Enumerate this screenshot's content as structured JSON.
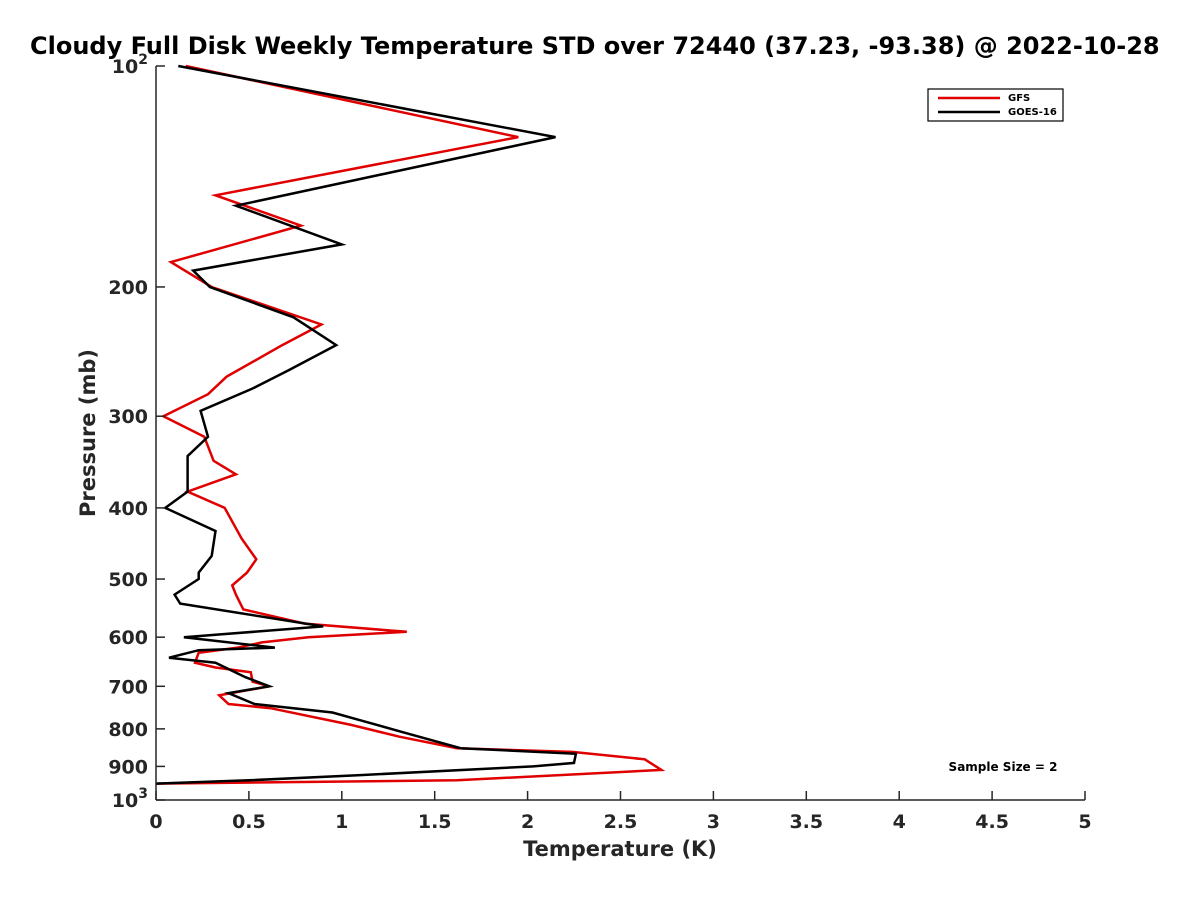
{
  "chart_data": {
    "type": "line",
    "title": "Cloudy Full Disk Weekly Temperature STD over 72440 (37.23, -93.38) @ 2022-10-28",
    "xlabel": "Temperature (K)",
    "ylabel": "Pressure (mb)",
    "xlim": [
      0,
      5
    ],
    "ylim": [
      100,
      1000
    ],
    "y_scale": "log",
    "y_reversed": true,
    "x_ticks": [
      "0",
      "0.5",
      "1",
      "1.5",
      "2",
      "2.5",
      "3",
      "3.5",
      "4",
      "4.5",
      "5"
    ],
    "y_ticks": [
      {
        "value": 100,
        "base": "10",
        "exp": "2",
        "label": ""
      },
      {
        "value": 200,
        "label": "200"
      },
      {
        "value": 300,
        "label": "300"
      },
      {
        "value": 400,
        "label": "400"
      },
      {
        "value": 500,
        "label": "500"
      },
      {
        "value": 600,
        "label": "600"
      },
      {
        "value": 700,
        "label": "700"
      },
      {
        "value": 800,
        "label": "800"
      },
      {
        "value": 900,
        "label": "900"
      },
      {
        "value": 1000,
        "base": "10",
        "exp": "3",
        "label": ""
      }
    ],
    "grid": false,
    "legend_position": "top-right",
    "annotation": "Sample Size = 2",
    "series": [
      {
        "name": "GFS",
        "color": "#e00000",
        "points": [
          [
            0.16,
            100
          ],
          [
            1.95,
            125
          ],
          [
            0.32,
            150
          ],
          [
            0.78,
            165
          ],
          [
            0.08,
            185
          ],
          [
            0.3,
            200
          ],
          [
            0.89,
            225
          ],
          [
            0.68,
            240
          ],
          [
            0.38,
            265
          ],
          [
            0.28,
            280
          ],
          [
            0.04,
            300
          ],
          [
            0.26,
            320
          ],
          [
            0.31,
            345
          ],
          [
            0.43,
            360
          ],
          [
            0.17,
            380
          ],
          [
            0.37,
            400
          ],
          [
            0.46,
            440
          ],
          [
            0.54,
            470
          ],
          [
            0.49,
            490
          ],
          [
            0.41,
            510
          ],
          [
            0.43,
            525
          ],
          [
            0.47,
            550
          ],
          [
            0.8,
            575
          ],
          [
            1.35,
            590
          ],
          [
            0.82,
            600
          ],
          [
            0.57,
            610
          ],
          [
            0.44,
            620
          ],
          [
            0.23,
            630
          ],
          [
            0.21,
            650
          ],
          [
            0.32,
            660
          ],
          [
            0.51,
            670
          ],
          [
            0.52,
            690
          ],
          [
            0.61,
            700
          ],
          [
            0.34,
            720
          ],
          [
            0.39,
            740
          ],
          [
            0.62,
            750
          ],
          [
            1.05,
            790
          ],
          [
            1.31,
            820
          ],
          [
            1.62,
            850
          ],
          [
            2.24,
            860
          ],
          [
            2.63,
            880
          ],
          [
            2.72,
            910
          ],
          [
            1.62,
            940
          ],
          [
            0.0,
            950
          ]
        ]
      },
      {
        "name": "GOES-16",
        "color": "#000000",
        "points": [
          [
            0.12,
            100
          ],
          [
            2.15,
            125
          ],
          [
            0.43,
            155
          ],
          [
            1.0,
            175
          ],
          [
            0.2,
            190
          ],
          [
            0.29,
            200
          ],
          [
            0.74,
            220
          ],
          [
            0.97,
            240
          ],
          [
            0.71,
            260
          ],
          [
            0.52,
            275
          ],
          [
            0.24,
            295
          ],
          [
            0.28,
            320
          ],
          [
            0.17,
            340
          ],
          [
            0.17,
            380
          ],
          [
            0.05,
            400
          ],
          [
            0.32,
            430
          ],
          [
            0.3,
            465
          ],
          [
            0.23,
            490
          ],
          [
            0.23,
            500
          ],
          [
            0.1,
            525
          ],
          [
            0.13,
            540
          ],
          [
            0.9,
            580
          ],
          [
            0.15,
            600
          ],
          [
            0.64,
            620
          ],
          [
            0.23,
            625
          ],
          [
            0.07,
            640
          ],
          [
            0.32,
            650
          ],
          [
            0.48,
            680
          ],
          [
            0.61,
            700
          ],
          [
            0.39,
            715
          ],
          [
            0.53,
            740
          ],
          [
            0.95,
            760
          ],
          [
            1.11,
            780
          ],
          [
            1.34,
            810
          ],
          [
            1.64,
            850
          ],
          [
            2.26,
            865
          ],
          [
            2.25,
            890
          ],
          [
            2.03,
            900
          ],
          [
            1.1,
            925
          ],
          [
            0.5,
            940
          ],
          [
            0.0,
            950
          ]
        ]
      }
    ]
  }
}
